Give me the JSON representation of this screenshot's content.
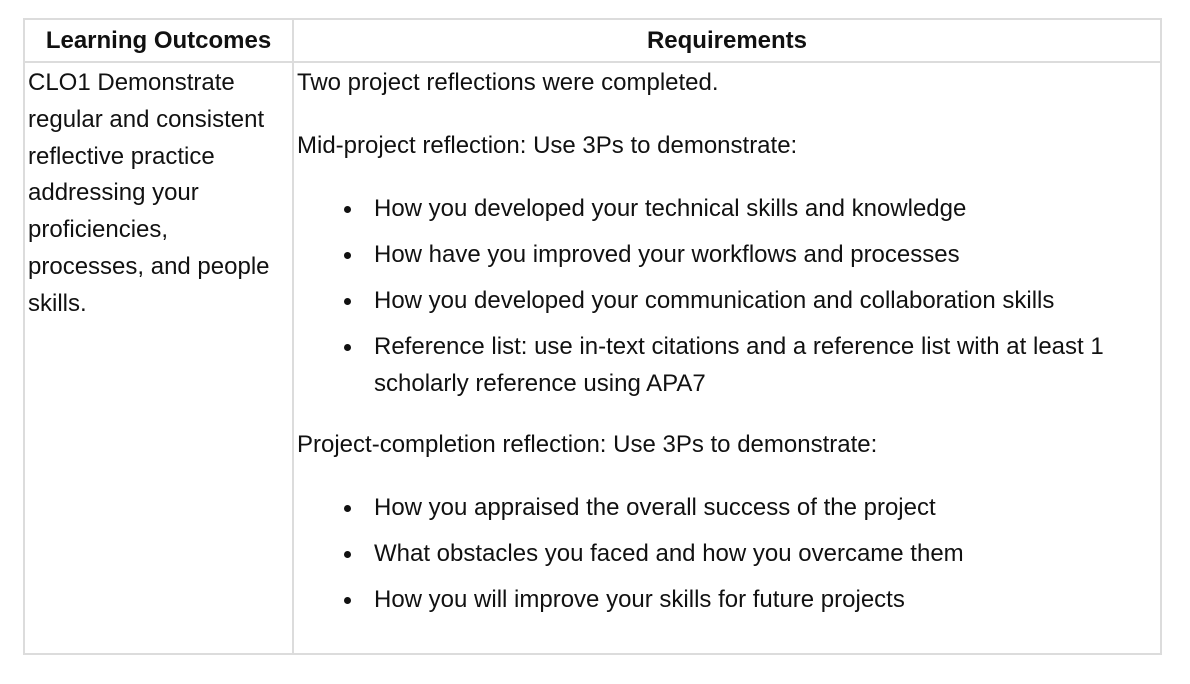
{
  "table": {
    "headers": {
      "outcomes": "Learning Outcomes",
      "requirements": "Requirements"
    },
    "rows": [
      {
        "outcome": "CLO1 Demonstrate regular and consistent reflective practice addressing your proficiencies, processes, and people skills.",
        "requirements": {
          "intro": "Two project reflections were completed.",
          "mid_heading": "Mid-project reflection: Use 3Ps to demonstrate:",
          "mid_items": [
            "How you developed your technical skills and knowledge",
            "How have you improved your workflows and processes",
            "How you developed your communication and collaboration skills",
            "Reference list: use in-text citations and a reference list with at least 1 scholarly reference using APA7"
          ],
          "completion_heading": "Project-completion reflection: Use 3Ps to demonstrate:",
          "completion_items": [
            "How you appraised the overall success of the project",
            "What obstacles you faced and how you overcame them",
            "How you will improve your skills for future projects"
          ]
        }
      }
    ]
  }
}
